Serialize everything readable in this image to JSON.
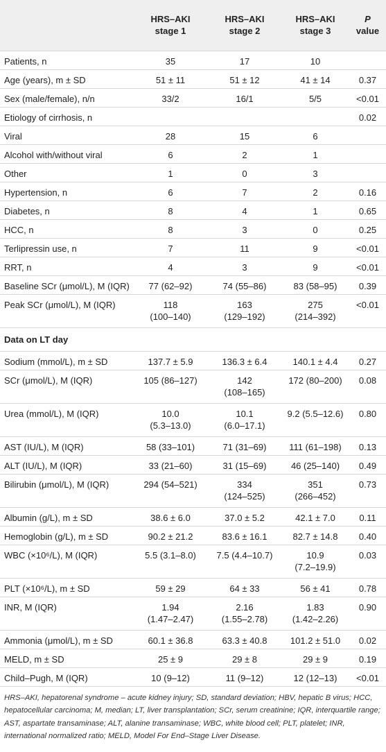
{
  "table": {
    "header": [
      [
        "HRS–AKI",
        "stage 1"
      ],
      [
        "HRS–AKI",
        "stage 2"
      ],
      [
        "HRS–AKI",
        "stage 3"
      ],
      [
        "P",
        "value"
      ]
    ],
    "rows": [
      {
        "label": "Patients, n",
        "s1": "35",
        "s2": "17",
        "s3": "10"
      },
      {
        "label": "Age (years), m ± SD",
        "s1": "51 ± 11",
        "s2": "51 ± 12",
        "s3": "41 ± 14",
        "p": "0.37"
      },
      {
        "label": "Sex (male/female), n/n",
        "s1": "33/2",
        "s2": "16/1",
        "s3": "5/5",
        "p": "<0.01"
      },
      {
        "label": "Etiology of cirrhosis, n",
        "p": "0.02"
      },
      {
        "label": "Viral",
        "s1": "28",
        "s2": "15",
        "s3": "6"
      },
      {
        "label": "Alcohol with/without viral",
        "s1": "6",
        "s2": "2",
        "s3": "1"
      },
      {
        "label": "Other",
        "s1": "1",
        "s2": "0",
        "s3": "3"
      },
      {
        "label": "Hypertension, n",
        "s1": "6",
        "s2": "7",
        "s3": "2",
        "p": "0.16"
      },
      {
        "label": "Diabetes, n",
        "s1": "8",
        "s2": "4",
        "s3": "1",
        "p": "0.65"
      },
      {
        "label": "HCC, n",
        "s1": "8",
        "s2": "3",
        "s3": "0",
        "p": "0.25"
      },
      {
        "label": "Terlipressin use, n",
        "s1": "7",
        "s2": "11",
        "s3": "9",
        "p": "<0.01"
      },
      {
        "label": "RRT, n",
        "s1": "4",
        "s2": "3",
        "s3": "9",
        "p": "<0.01"
      },
      {
        "label": "Baseline SCr (μmol/L), M (IQR)",
        "s1": "77 (62–92)",
        "s2": "74 (55–86)",
        "s3": "83 (58–95)",
        "p": "0.39"
      },
      {
        "label": "Peak SCr (μmol/L), M (IQR)",
        "s1": [
          "118",
          "(100–140)"
        ],
        "s2": [
          "163",
          "(129–192)"
        ],
        "s3": [
          "275",
          "(214–392)"
        ],
        "p": "<0.01"
      }
    ],
    "section_title": "Data on LT day",
    "lt_rows": [
      {
        "label": "Sodium (mmol/L), m ± SD",
        "s1": "137.7 ± 5.9",
        "s2": "136.3 ± 6.4",
        "s3": "140.1 ± 4.4",
        "p": "0.27"
      },
      {
        "label": "SCr (μmol/L), M (IQR)",
        "s1": "105 (86–127)",
        "s2": [
          "142",
          "(108–165)"
        ],
        "s3": "172 (80–200)",
        "p": "0.08"
      },
      {
        "label": "Urea (mmol/L), M (IQR)",
        "s1": [
          "10.0",
          "(5.3–13.0)"
        ],
        "s2": [
          "10.1",
          "(6.0–17.1)"
        ],
        "s3": "9.2 (5.5–12.6)",
        "p": "0.80"
      },
      {
        "label": "AST (IU/L), M (IQR)",
        "s1": "58 (33–101)",
        "s2": "71 (31–69)",
        "s3": "111 (61–198)",
        "p": "0.13"
      },
      {
        "label": "ALT (IU/L), M (IQR)",
        "s1": "33 (21–60)",
        "s2": "31 (15–69)",
        "s3": "46 (25–140)",
        "p": "0.49"
      },
      {
        "label": "Bilirubin (μmol/L), M (IQR)",
        "s1": "294 (54–521)",
        "s2": [
          "334",
          "(124–525)"
        ],
        "s3": [
          "351",
          "(266–452)"
        ],
        "p": "0.73"
      },
      {
        "label": "Albumin (g/L), m ± SD",
        "s1": "38.6 ± 6.0",
        "s2": "37.0 ± 5.2",
        "s3": "42.1 ± 7.0",
        "p": "0.11"
      },
      {
        "label": "Hemoglobin (g/L), m ± SD",
        "s1": "90.2 ± 21.2",
        "s2": "83.6 ± 16.1",
        "s3": "82.7 ± 14.8",
        "p": "0.40"
      },
      {
        "label": "WBC (×10⁶/L), M (IQR)",
        "s1": "5.5 (3.1–8.0)",
        "s2": "7.5 (4.4–10.7)",
        "s3": [
          "10.9",
          "(7.2–19.9)"
        ],
        "p": "0.03"
      },
      {
        "label": "PLT (×10⁶/L), m ± SD",
        "s1": "59 ± 29",
        "s2": "64 ± 33",
        "s3": "56 ± 41",
        "p": "0.78"
      },
      {
        "label": "INR, M (IQR)",
        "s1": [
          "1.94",
          "(1.47–2.47)"
        ],
        "s2": [
          "2.16",
          "(1.55–2.78)"
        ],
        "s3": [
          "1.83",
          "(1.42–2.26)"
        ],
        "p": "0.90"
      },
      {
        "label": "Ammonia (μmol/L), m ± SD",
        "s1": "60.1 ± 36.8",
        "s2": "63.3 ± 40.8",
        "s3": "101.2 ± 51.0",
        "p": "0.02"
      },
      {
        "label": "MELD, m ± SD",
        "s1": "25 ± 9",
        "s2": "29 ± 8",
        "s3": "29 ± 9",
        "p": "0.19"
      },
      {
        "label": "Child–Pugh, M (IQR)",
        "s1": "10 (9–12)",
        "s2": "11 (9–12)",
        "s3": "12 (12–13)",
        "p": "<0.01"
      }
    ],
    "footnote": "HRS–AKI, hepatorenal syndrome – acute kidney injury; SD, standard deviation; HBV, hepatic B virus; HCC, hepatocellular carcinoma; M, median; LT, liver transplantation; SCr, serum creatinine; IQR, interquartile range; AST, aspartate transaminase; ALT, alanine transaminase; WBC, white blood cell; PLT, platelet; INR, international normalized ratio; MELD, Model For End–Stage Liver Disease."
  }
}
